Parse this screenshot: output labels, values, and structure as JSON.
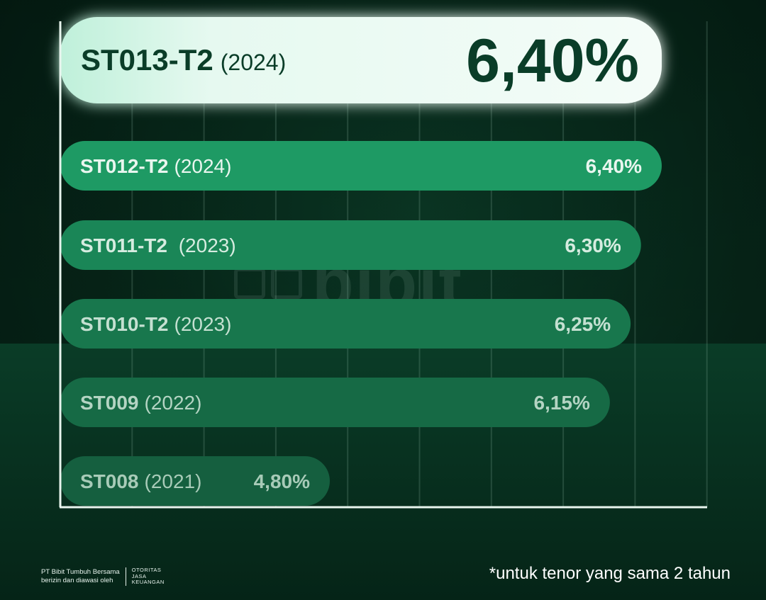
{
  "chart_data": {
    "type": "bar",
    "orientation": "horizontal",
    "categories": [
      {
        "code": "ST013-T2",
        "year": "(2024)"
      },
      {
        "code": "ST012-T2",
        "year": "(2024)"
      },
      {
        "code": "ST011-T2",
        "year": " (2023)"
      },
      {
        "code": "ST010-T2",
        "year": "(2023)"
      },
      {
        "code": "ST009",
        "year": "(2022)"
      },
      {
        "code": "ST008",
        "year": "(2021)"
      }
    ],
    "values": [
      6.4,
      6.4,
      6.3,
      6.25,
      6.15,
      4.8
    ],
    "value_labels": [
      "6,40%",
      "6,40%",
      "6,30%",
      "6,25%",
      "6,15%",
      "4,80%"
    ],
    "highlighted_index": 0,
    "grid": true
  },
  "brand": {
    "watermark": "bibit",
    "company_line1": "PT Bibit Tumbuh Bersama",
    "company_line2": "berizin dan diawasi oleh",
    "regulator_line1": "OTORITAS",
    "regulator_line2": "JASA",
    "regulator_line3": "KEUANGAN"
  },
  "footnote": "*untuk tenor yang sama 2 tahun",
  "colors": {
    "highlight_fill": "#e3f7ee",
    "highlight_text": "#0a3d28",
    "bar_fills": [
      "#1e9a64",
      "#1a8657",
      "#18774d",
      "#166a45",
      "#155f3f"
    ],
    "bar_text": [
      "#e9f6ef",
      "#d6ece0",
      "#c4e0d1",
      "#b4d4c3",
      "#a8cbb8"
    ]
  }
}
